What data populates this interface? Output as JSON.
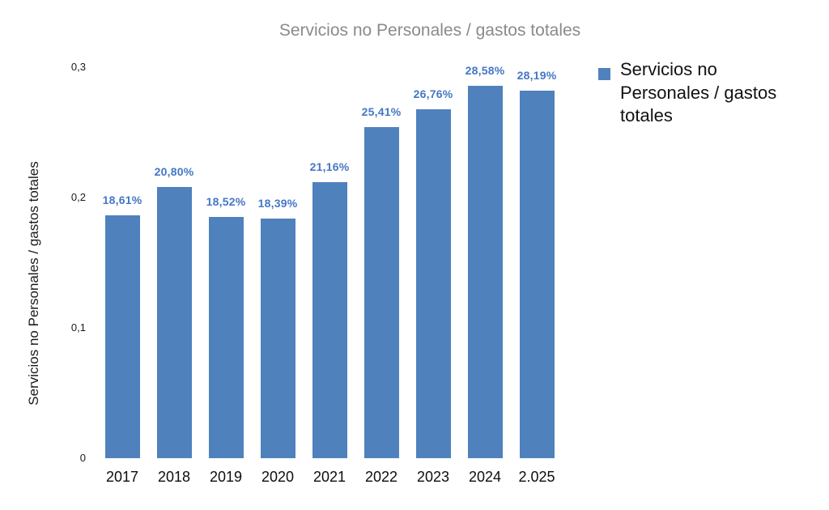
{
  "chart_data": {
    "type": "bar",
    "title": "Servicios no Personales / gastos totales",
    "categories": [
      "2017",
      "2018",
      "2019",
      "2020",
      "2021",
      "2022",
      "2023",
      "2024",
      "2.025"
    ],
    "values": [
      0.1861,
      0.208,
      0.1852,
      0.1839,
      0.2116,
      0.2541,
      0.2676,
      0.2858,
      0.2819
    ],
    "value_labels": [
      "18,61%",
      "20,80%",
      "18,52%",
      "18,39%",
      "21,16%",
      "25,41%",
      "26,76%",
      "28,58%",
      "28,19%"
    ],
    "xlabel": "",
    "ylabel": "Servicios no Personales / gastos totales",
    "ylim": [
      0,
      0.3
    ],
    "yticks": [
      0,
      0.1,
      0.2,
      0.3
    ],
    "ytick_labels": [
      "0",
      "0,1",
      "0,2",
      "0,3"
    ],
    "grid": false,
    "legend": {
      "position": "right",
      "label": "Servicios no Personales / gastos totales"
    },
    "colors": {
      "bar": "#4F81BD",
      "value_label": "#4577C4",
      "title": "#8A8A8A",
      "axis_text": "#1A1A1A"
    }
  }
}
